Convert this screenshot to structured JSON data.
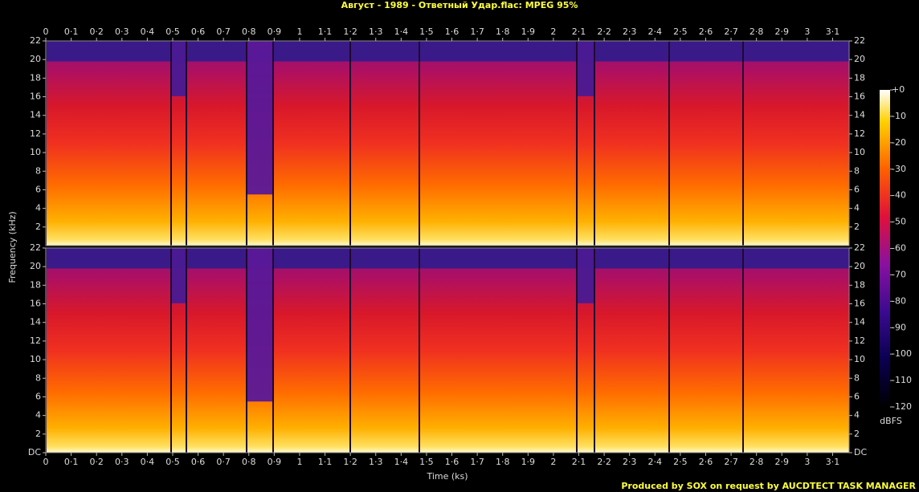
{
  "chart_data": {
    "type": "spectrogram",
    "title": "Август - 1989 - Ответный Удар.flac: MPEG 95%",
    "xlabel": "Time (ks)",
    "ylabel": "Frequency (kHz)",
    "xlim": [
      0,
      3.165
    ],
    "xticks": [
      0,
      {
        "value": 0.1,
        "label": "0·1"
      },
      {
        "value": 0.2,
        "label": "0·2"
      },
      {
        "value": 0.3,
        "label": "0·3"
      },
      {
        "value": 0.4,
        "label": "0·4"
      },
      {
        "value": 0.5,
        "label": "0·5"
      },
      {
        "value": 0.6,
        "label": "0·6"
      },
      {
        "value": 0.7,
        "label": "0·7"
      },
      {
        "value": 0.8,
        "label": "0·8"
      },
      {
        "value": 0.9,
        "label": "0·9"
      },
      1,
      {
        "value": 1.1,
        "label": "1·1"
      },
      {
        "value": 1.2,
        "label": "1·2"
      },
      {
        "value": 1.3,
        "label": "1·3"
      },
      {
        "value": 1.4,
        "label": "1·4"
      },
      {
        "value": 1.5,
        "label": "1·5"
      },
      {
        "value": 1.6,
        "label": "1·6"
      },
      {
        "value": 1.7,
        "label": "1·7"
      },
      {
        "value": 1.8,
        "label": "1·8"
      },
      {
        "value": 1.9,
        "label": "1·9"
      },
      2,
      {
        "value": 2.1,
        "label": "2·1"
      },
      {
        "value": 2.2,
        "label": "2·2"
      },
      {
        "value": 2.3,
        "label": "2·3"
      },
      {
        "value": 2.4,
        "label": "2·4"
      },
      {
        "value": 2.5,
        "label": "2·5"
      },
      {
        "value": 2.6,
        "label": "2·6"
      },
      {
        "value": 2.7,
        "label": "2·7"
      },
      {
        "value": 2.8,
        "label": "2·8"
      },
      {
        "value": 2.9,
        "label": "2·9"
      },
      3,
      {
        "value": 3.1,
        "label": "3·1"
      }
    ],
    "ylim": [
      0,
      22
    ],
    "yticks": [
      {
        "value": 0,
        "label": "DC"
      },
      2,
      4,
      6,
      8,
      10,
      12,
      14,
      16,
      18,
      20,
      22
    ],
    "colorbar": {
      "label": "dBFS",
      "lim": [
        -120,
        0
      ],
      "ticks": [
        {
          "value": 0,
          "label": "+0"
        },
        -10,
        -20,
        -30,
        -40,
        -50,
        -60,
        -70,
        -80,
        -90,
        -100,
        -110,
        -120
      ]
    },
    "footer": "Produced by SOX on request by AUCDTECT TASK MANAGER"
  }
}
